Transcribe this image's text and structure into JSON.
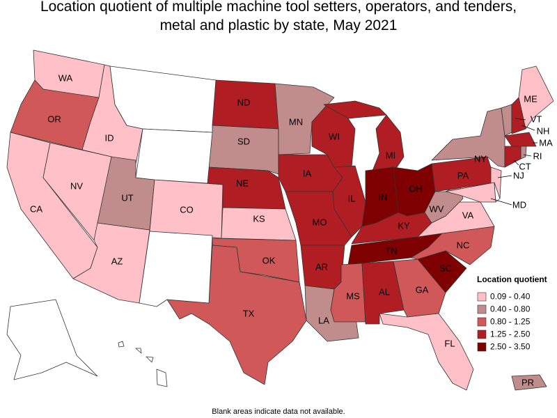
{
  "title": "Location quotient of multiple machine tool setters, operators, and tenders, metal and plastic by state, May 2021",
  "legend": {
    "title": "Location quotient",
    "items": [
      {
        "label": "0.09 - 0.40",
        "color": "#ffc0c8"
      },
      {
        "label": "0.40 - 0.80",
        "color": "#c08c8c"
      },
      {
        "label": "0.80 - 1.25",
        "color": "#d05858"
      },
      {
        "label": "1.25 - 2.50",
        "color": "#b01e24"
      },
      {
        "label": "2.50 - 3.50",
        "color": "#7e0000"
      }
    ]
  },
  "states": [
    {
      "label": "WA",
      "class": 0
    },
    {
      "label": "OR",
      "class": 2
    },
    {
      "label": "CA",
      "class": 0
    },
    {
      "label": "ID",
      "class": 0
    },
    {
      "label": "NV",
      "class": 0
    },
    {
      "label": "AZ",
      "class": 0
    },
    {
      "label": "UT",
      "class": 1
    },
    {
      "label": "CO",
      "class": 0
    },
    {
      "label": "ND",
      "class": 3
    },
    {
      "label": "SD",
      "class": 1
    },
    {
      "label": "NE",
      "class": 3
    },
    {
      "label": "KS",
      "class": 0
    },
    {
      "label": "OK",
      "class": 2
    },
    {
      "label": "TX",
      "class": 2
    },
    {
      "label": "MN",
      "class": 1
    },
    {
      "label": "IA",
      "class": 3
    },
    {
      "label": "MO",
      "class": 3
    },
    {
      "label": "AR",
      "class": 3
    },
    {
      "label": "LA",
      "class": 1
    },
    {
      "label": "WI",
      "class": 3
    },
    {
      "label": "IL",
      "class": 3
    },
    {
      "label": "MI",
      "class": 3
    },
    {
      "label": "IN",
      "class": 4
    },
    {
      "label": "OH",
      "class": 4
    },
    {
      "label": "KY",
      "class": 3
    },
    {
      "label": "TN",
      "class": 4
    },
    {
      "label": "MS",
      "class": 2
    },
    {
      "label": "AL",
      "class": 3
    },
    {
      "label": "GA",
      "class": 2
    },
    {
      "label": "FL",
      "class": 0
    },
    {
      "label": "SC",
      "class": 4
    },
    {
      "label": "NC",
      "class": 2
    },
    {
      "label": "VA",
      "class": 0
    },
    {
      "label": "WV",
      "class": 1
    },
    {
      "label": "PA",
      "class": 3
    },
    {
      "label": "NY",
      "class": 1
    },
    {
      "label": "ME",
      "class": 0
    },
    {
      "label": "VT",
      "class": 1
    },
    {
      "label": "NH",
      "class": 3
    },
    {
      "label": "MA",
      "class": 3
    },
    {
      "label": "RI",
      "class": 1
    },
    {
      "label": "CT",
      "class": 3
    },
    {
      "label": "NJ",
      "class": 0
    },
    {
      "label": "MD",
      "class": 0
    },
    {
      "label": "PR",
      "class": 1
    }
  ],
  "note": "Blank areas indicate data not available."
}
